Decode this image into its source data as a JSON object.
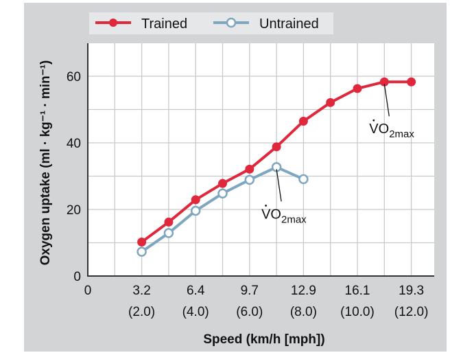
{
  "chart_data": {
    "type": "line",
    "xlabel": "Speed (km/h [mph])",
    "ylabel": "Oxygen uptake (ml · kg⁻¹ · min⁻¹)",
    "ylim": [
      0,
      70
    ],
    "xlim_mph": [
      0,
      12.85
    ],
    "grid": true,
    "legend_position": "top",
    "x_ticks": [
      {
        "kmh": "0",
        "mph": "",
        "mph_value": 0
      },
      {
        "kmh": "3.2",
        "mph": "(2.0)",
        "mph_value": 2
      },
      {
        "kmh": "6.4",
        "mph": "(4.0)",
        "mph_value": 4
      },
      {
        "kmh": "9.7",
        "mph": "(6.0)",
        "mph_value": 6
      },
      {
        "kmh": "12.9",
        "mph": "(8.0)",
        "mph_value": 8
      },
      {
        "kmh": "16.1",
        "mph": "(10.0)",
        "mph_value": 10
      },
      {
        "kmh": "19.3",
        "mph": "(12.0)",
        "mph_value": 12
      }
    ],
    "y_ticks": [
      0,
      20,
      40,
      60
    ],
    "series": [
      {
        "name": "Trained",
        "color": "#e0283c",
        "marker": "filled",
        "x_mph": [
          2,
          3,
          4,
          5,
          6,
          7,
          8,
          9,
          10,
          11,
          12
        ],
        "y": [
          10.2,
          16.2,
          22.9,
          27.8,
          32.1,
          38.8,
          46.5,
          52.1,
          56.3,
          58.3,
          58.3
        ]
      },
      {
        "name": "Untrained",
        "color": "#7fa6bf",
        "marker": "open",
        "x_mph": [
          2,
          3,
          4,
          5,
          6,
          7,
          8
        ],
        "y": [
          7.3,
          12.9,
          19.6,
          24.8,
          28.9,
          32.7,
          29.1
        ]
      }
    ],
    "annotations": [
      {
        "text": "VO",
        "sub": "2max",
        "series": "Trained",
        "x_mph": 11,
        "y": 58.3
      },
      {
        "text": "VO",
        "sub": "2max",
        "series": "Untrained",
        "x_mph": 7,
        "y": 32.7
      }
    ]
  },
  "colors": {
    "panel": "#d3d4d6",
    "legend_bg": "#e6e7e8"
  }
}
